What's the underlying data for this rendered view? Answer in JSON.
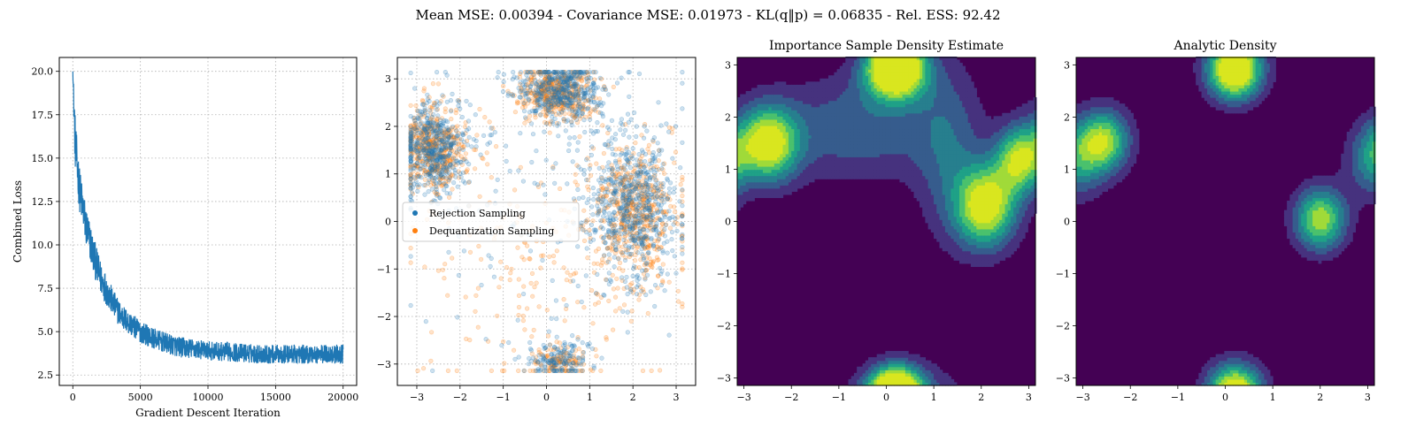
{
  "suptitle": "Mean MSE: 0.00394 - Covariance MSE: 0.01973 - KL(q‖p) = 0.06835 - Rel. ESS: 92.42",
  "chart_data": [
    {
      "type": "line",
      "title": "",
      "xlabel": "Gradient Descent Iteration",
      "ylabel": "Combined Loss",
      "xlim": [
        -1000,
        21000
      ],
      "ylim": [
        1.9,
        20.8
      ],
      "xticks": [
        0,
        5000,
        10000,
        15000,
        20000
      ],
      "yticks": [
        2.5,
        5.0,
        7.5,
        10.0,
        12.5,
        15.0,
        17.5,
        20.0
      ],
      "grid": true,
      "series": [
        {
          "color": "#1f77b4",
          "x": [
            0,
            100,
            200,
            300,
            400,
            500,
            700,
            1000,
            1500,
            2000,
            2500,
            3000,
            3500,
            4000,
            5000,
            6000,
            7000,
            8000,
            10000,
            12000,
            14000,
            16000,
            18000,
            20000
          ],
          "y": [
            20.0,
            17.5,
            15.5,
            14.8,
            14.0,
            13.2,
            12.3,
            11.0,
            9.5,
            8.2,
            7.4,
            6.6,
            6.0,
            5.6,
            5.0,
            4.6,
            4.3,
            4.1,
            3.9,
            3.8,
            3.7,
            3.7,
            3.7,
            3.7
          ],
          "noise": [
            0.0,
            1.5,
            1.5,
            1.4,
            1.3,
            1.3,
            1.2,
            1.2,
            1.1,
            1.0,
            0.9,
            0.8,
            0.75,
            0.7,
            0.65,
            0.6,
            0.6,
            0.6,
            0.55,
            0.55,
            0.55,
            0.55,
            0.55,
            0.55
          ]
        }
      ]
    },
    {
      "type": "scatter",
      "title": "",
      "xlim": [
        -3.45,
        3.45
      ],
      "ylim": [
        -3.45,
        3.45
      ],
      "xticks": [
        -3,
        -2,
        -1,
        0,
        1,
        2,
        3
      ],
      "yticks": [
        -3,
        -2,
        -1,
        0,
        1,
        2,
        3
      ],
      "grid": true,
      "legend_position": "center-left",
      "series": [
        {
          "name": "Rejection Sampling",
          "color": "#1f77b4",
          "clusters": [
            {
              "x": -2.6,
              "y": 1.5,
              "sx": 0.4,
              "sy": 0.5,
              "weight": 0.26
            },
            {
              "x": 0.3,
              "y": 2.75,
              "sx": 0.5,
              "sy": 0.3,
              "weight": 0.24
            },
            {
              "x": 2.0,
              "y": 0.3,
              "sx": 0.5,
              "sy": 0.8,
              "weight": 0.32
            },
            {
              "x": 0.3,
              "y": -2.9,
              "sx": 0.35,
              "sy": 0.2,
              "weight": 0.08
            },
            {
              "x": 0.2,
              "y": 0.5,
              "sx": 1.8,
              "sy": 1.5,
              "weight": 0.1
            }
          ]
        },
        {
          "name": "Dequantization Sampling",
          "color": "#ff7f0e",
          "clusters": [
            {
              "x": -2.6,
              "y": 1.5,
              "sx": 0.35,
              "sy": 0.45,
              "weight": 0.27
            },
            {
              "x": 0.25,
              "y": 2.7,
              "sx": 0.45,
              "sy": 0.3,
              "weight": 0.25
            },
            {
              "x": 2.0,
              "y": 0.2,
              "sx": 0.5,
              "sy": 0.7,
              "weight": 0.3
            },
            {
              "x": 0.3,
              "y": -2.95,
              "sx": 0.3,
              "sy": 0.15,
              "weight": 0.06
            },
            {
              "x": 0.0,
              "y": -1.0,
              "sx": 1.6,
              "sy": 1.4,
              "weight": 0.12
            }
          ]
        }
      ]
    },
    {
      "type": "heatmap",
      "title": "Importance Sample Density Estimate",
      "xlim": [
        -3.14159,
        3.14159
      ],
      "ylim": [
        -3.14159,
        3.14159
      ],
      "xticks": [
        -3,
        -2,
        -1,
        0,
        1,
        2,
        3
      ],
      "yticks": [
        -3,
        -2,
        -1,
        0,
        1,
        2,
        3
      ],
      "colormap": "viridis",
      "levels": 8,
      "modes": [
        {
          "x": -2.5,
          "y": 1.5,
          "sx": 0.45,
          "sy": 0.5,
          "amp": 1.0
        },
        {
          "x": 0.2,
          "y": 2.8,
          "sx": 0.45,
          "sy": 0.35,
          "amp": 1.0
        },
        {
          "x": 2.1,
          "y": 0.3,
          "sx": 0.45,
          "sy": 0.55,
          "amp": 1.0
        },
        {
          "x": 2.8,
          "y": 1.2,
          "sx": 0.35,
          "sy": 0.45,
          "amp": 0.8
        },
        {
          "x": 0.2,
          "y": -3.1,
          "sx": 0.4,
          "sy": 0.3,
          "amp": 0.8
        },
        {
          "x": -0.6,
          "y": 1.8,
          "sx": 1.2,
          "sy": 0.7,
          "amp": 0.35
        },
        {
          "x": 1.3,
          "y": 1.4,
          "sx": 0.5,
          "sy": 1.2,
          "amp": 0.3
        }
      ]
    },
    {
      "type": "heatmap",
      "title": "Analytic Density",
      "xlim": [
        -3.14159,
        3.14159
      ],
      "ylim": [
        -3.14159,
        3.14159
      ],
      "xticks": [
        -3,
        -2,
        -1,
        0,
        1,
        2,
        3
      ],
      "yticks": [
        -3,
        -2,
        -1,
        0,
        1,
        2,
        3
      ],
      "colormap": "viridis",
      "levels": 8,
      "modes": [
        {
          "x": -2.55,
          "y": 1.55,
          "sx": 0.38,
          "sy": 0.42,
          "amp": 0.8
        },
        {
          "x": 0.2,
          "y": 2.75,
          "sx": 0.4,
          "sy": 0.35,
          "amp": 0.75
        },
        {
          "x": 2.0,
          "y": 0.05,
          "sx": 0.38,
          "sy": 0.42,
          "amp": 0.85
        },
        {
          "x": 3.14,
          "y": 1.2,
          "sx": 0.4,
          "sy": 0.5,
          "amp": 0.5
        },
        {
          "x": 0.2,
          "y": -3.14,
          "sx": 0.4,
          "sy": 0.35,
          "amp": 0.7
        }
      ]
    }
  ]
}
